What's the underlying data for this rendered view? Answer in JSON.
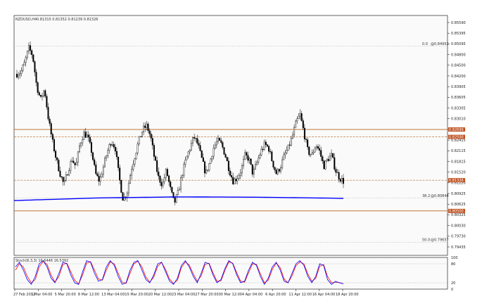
{
  "header": {
    "symbol": "NZDUSD,H4",
    "ohlc": "0.81315 0.81352 0.81239 0.81326"
  },
  "indicator_label": "Stoch(8,3,3) 16.6446 16.5392",
  "colors": {
    "resistance_line": "#b5651d",
    "ma_line": "#0000ff",
    "stoch_main": "#0000ff",
    "stoch_signal": "#ff0000",
    "price_tag": "#c0501f",
    "candles": "#000000",
    "background": "#ffffff"
  },
  "fib_labels": {
    "level_0": "0.0",
    "level_0_price": "@0.84952",
    "level_38": "38.2",
    "level_38_price": "@0.80848",
    "level_50": "50.0",
    "level_50_price": "@0.79657"
  },
  "price_tags": [
    "0.82699",
    "0.82500",
    "0.81326",
    "0.80500"
  ],
  "chart_data": {
    "type": "candlestick",
    "y_range": [
      0.793,
      0.8578
    ],
    "y_ticks": [
      "0.85590",
      "0.85395",
      "0.85095",
      "0.84800",
      "0.84500",
      "0.84200",
      "0.83905",
      "0.83605",
      "0.83305",
      "0.83010",
      "0.82715",
      "0.82415",
      "0.82115",
      "0.81815",
      "0.81520",
      "0.81220",
      "0.80925",
      "0.80625",
      "0.80325",
      "0.80030",
      "0.79730",
      "0.79435"
    ],
    "x_ticks": [
      "27 Feb 2012",
      "1 Mar 04:00",
      "5 Mar 20:00",
      "8 Mar 12:00",
      "13 Mar 04:00",
      "15 Mar 20:00",
      "20 Mar 12:00",
      "23 Mar 04:00",
      "27 Mar 20:00",
      "30 Mar 12:00",
      "4 Apr 04:00",
      "6 Apr 20:00",
      "11 Apr 12:00",
      "16 Apr 04:00",
      "18 Apr 20:00"
    ],
    "close_path": [
      0.842,
      0.8425,
      0.845,
      0.849,
      0.847,
      0.839,
      0.835,
      0.838,
      0.83,
      0.824,
      0.819,
      0.815,
      0.812,
      0.816,
      0.819,
      0.817,
      0.823,
      0.826,
      0.825,
      0.821,
      0.815,
      0.813,
      0.817,
      0.821,
      0.824,
      0.822,
      0.814,
      0.808,
      0.81,
      0.816,
      0.82,
      0.824,
      0.827,
      0.828,
      0.825,
      0.819,
      0.814,
      0.812,
      0.816,
      0.811,
      0.807,
      0.81,
      0.815,
      0.819,
      0.822,
      0.825,
      0.823,
      0.819,
      0.815,
      0.818,
      0.822,
      0.824,
      0.823,
      0.82,
      0.816,
      0.813,
      0.814,
      0.816,
      0.82,
      0.819,
      0.815,
      0.818,
      0.821,
      0.823,
      0.822,
      0.818,
      0.815,
      0.817,
      0.82,
      0.822,
      0.825,
      0.829,
      0.831,
      0.826,
      0.821,
      0.82,
      0.823,
      0.821,
      0.817,
      0.819,
      0.82,
      0.816,
      0.814,
      0.813
    ],
    "horizontal_levels": [
      0.827,
      0.825,
      0.8133,
      0.805
    ],
    "fib_levels": [
      {
        "name": "0.0",
        "price": 0.84952
      },
      {
        "name": "38.2",
        "price": 0.80848
      },
      {
        "name": "50.0",
        "price": 0.79657
      }
    ],
    "moving_average": [
      [
        0,
        0.8078
      ],
      [
        0.25,
        0.8085
      ],
      [
        0.5,
        0.8088
      ],
      [
        0.75,
        0.8087
      ],
      [
        1,
        0.8084
      ]
    ],
    "stochastic": {
      "levels": [
        20,
        80
      ],
      "y_ticks": [
        "100",
        "80",
        "20",
        "0"
      ],
      "main": [
        70,
        85,
        60,
        30,
        15,
        40,
        80,
        90,
        70,
        35,
        20,
        50,
        85,
        80,
        45,
        20,
        15,
        55,
        90,
        85,
        50,
        25,
        30,
        70,
        90,
        75,
        40,
        15,
        20,
        60,
        85,
        90,
        60,
        30,
        20,
        45,
        80,
        85,
        55,
        25,
        15,
        35,
        75,
        90,
        70,
        40,
        20,
        50,
        85,
        80,
        45,
        20,
        30,
        65,
        90,
        80,
        45,
        20,
        25,
        60,
        85,
        75,
        40,
        15,
        35,
        70,
        85,
        60,
        25,
        20,
        50,
        80,
        90,
        75,
        40,
        20,
        40,
        80,
        75,
        30,
        15,
        25,
        20,
        17
      ],
      "signal": [
        60,
        80,
        70,
        40,
        20,
        30,
        70,
        88,
        78,
        45,
        22,
        40,
        78,
        82,
        55,
        28,
        17,
        45,
        82,
        87,
        60,
        32,
        28,
        60,
        86,
        80,
        50,
        22,
        18,
        50,
        80,
        88,
        70,
        38,
        22,
        38,
        72,
        84,
        62,
        32,
        18,
        28,
        68,
        86,
        76,
        48,
        25,
        42,
        78,
        82,
        52,
        25,
        26,
        58,
        86,
        82,
        52,
        25,
        22,
        52,
        80,
        78,
        48,
        20,
        28,
        62,
        82,
        68,
        32,
        20,
        42,
        74,
        86,
        80,
        48,
        25,
        34,
        72,
        78,
        40,
        20,
        22,
        21,
        17
      ]
    }
  }
}
